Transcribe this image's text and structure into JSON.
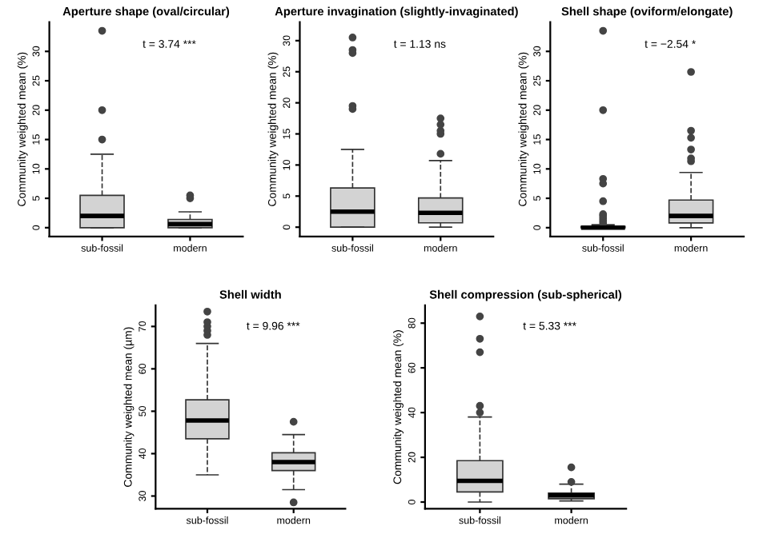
{
  "chart_data": [
    {
      "type": "box",
      "title": "Aperture shape (oval/circular)",
      "ylabel": "Community weighted mean (%)",
      "categories": [
        "sub-fossil",
        "modern"
      ],
      "ylim": [
        -1.5,
        35
      ],
      "yticks": [
        0,
        5,
        10,
        15,
        20,
        25,
        30
      ],
      "annotations": [
        "t = 3.74 ***"
      ],
      "boxes": [
        {
          "low": 0,
          "q1": 0,
          "median": 2,
          "q3": 5.5,
          "high": 12.5,
          "outliers": [
            15,
            20,
            33.5
          ]
        },
        {
          "low": 0,
          "q1": 0,
          "median": 0.6,
          "q3": 1.4,
          "high": 2.7,
          "outliers": [
            5,
            5.5
          ]
        }
      ]
    },
    {
      "type": "box",
      "title": "Aperture invagination (slightly-invaginated)",
      "ylabel": "Community weighted mean (%)",
      "categories": [
        "sub-fossil",
        "modern"
      ],
      "ylim": [
        -1.5,
        33
      ],
      "yticks": [
        0,
        5,
        10,
        15,
        20,
        25,
        30
      ],
      "annotations": [
        "t = 1.13 ns"
      ],
      "boxes": [
        {
          "low": 0,
          "q1": 0,
          "median": 2.5,
          "q3": 6.3,
          "high": 12.5,
          "outliers": [
            19,
            19.5,
            28,
            28.5,
            30.5
          ]
        },
        {
          "low": 0,
          "q1": 0.7,
          "median": 2.3,
          "q3": 4.7,
          "high": 10.7,
          "outliers": [
            11.8,
            15,
            15.5,
            16.5,
            17.5
          ]
        }
      ]
    },
    {
      "type": "box",
      "title": "Shell shape (oviform/elongate)",
      "ylabel": "Community weighted mean (%)",
      "categories": [
        "sub-fossil",
        "modern"
      ],
      "ylim": [
        -1.5,
        35
      ],
      "yticks": [
        0,
        5,
        10,
        15,
        20,
        25,
        30
      ],
      "annotations": [
        "t = −2.54 *"
      ],
      "boxes": [
        {
          "low": 0,
          "q1": 0,
          "median": 0,
          "q3": 0.2,
          "high": 0.5,
          "outliers": [
            0.8,
            1.2,
            1.6,
            2,
            2.3,
            4.5,
            7.5,
            8.3,
            20,
            33.5
          ]
        },
        {
          "low": 0,
          "q1": 0.8,
          "median": 2,
          "q3": 4.7,
          "high": 9.4,
          "outliers": [
            11.3,
            11.8,
            13.3,
            15.3,
            16.5,
            26.5
          ]
        }
      ]
    },
    {
      "type": "box",
      "title": "Shell width",
      "ylabel": "Community weighted mean (µm)",
      "categories": [
        "sub-fossil",
        "modern"
      ],
      "ylim": [
        27,
        75
      ],
      "yticks": [
        30,
        40,
        50,
        60,
        70
      ],
      "annotations": [
        "t = 9.96 ***"
      ],
      "boxes": [
        {
          "low": 35,
          "q1": 43.5,
          "median": 47.8,
          "q3": 52.7,
          "high": 66,
          "outliers": [
            68,
            69,
            70,
            71,
            73.5
          ]
        },
        {
          "low": 31.5,
          "q1": 36,
          "median": 38,
          "q3": 40.2,
          "high": 44.5,
          "outliers": [
            47.5,
            28.5
          ]
        }
      ]
    },
    {
      "type": "box",
      "title": "Shell compression (sub-spherical)",
      "ylabel": "Community weighted mean (%)",
      "categories": [
        "sub-fossil",
        "modern"
      ],
      "ylim": [
        -3,
        88
      ],
      "yticks": [
        0,
        20,
        40,
        60,
        80
      ],
      "annotations": [
        "t = 5.33 ***"
      ],
      "boxes": [
        {
          "low": 0,
          "q1": 4.5,
          "median": 9.5,
          "q3": 18.5,
          "high": 38,
          "outliers": [
            40,
            43,
            67,
            73,
            83
          ]
        },
        {
          "low": 0.5,
          "q1": 1.5,
          "median": 3,
          "q3": 4,
          "high": 8,
          "outliers": [
            9,
            15.5
          ]
        }
      ]
    }
  ]
}
